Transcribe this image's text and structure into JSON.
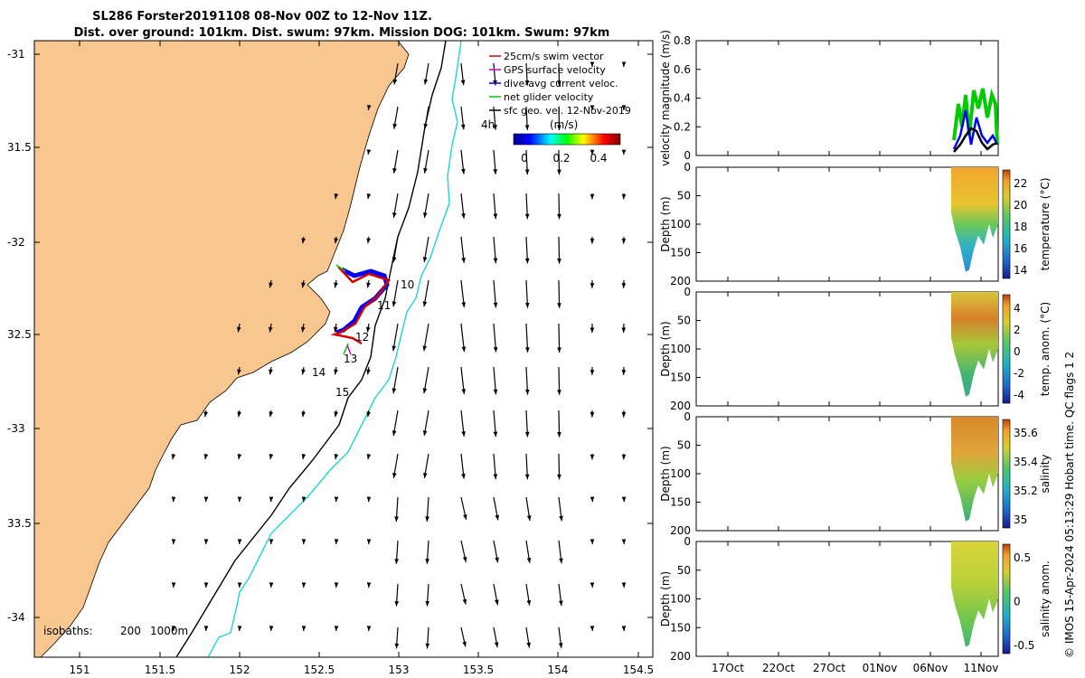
{
  "header": {
    "title_line1": "SL286 Forster20191108 08-Nov 00Z to 12-Nov 11Z.",
    "title_line2": "Dist. over ground: 101km. Dist. swum: 97km. Mission DOG: 101km. Swum: 97km"
  },
  "map": {
    "lon_ticks": [
      "151",
      "151.5",
      "152",
      "152.5",
      "153",
      "153.5",
      "154",
      "154.5"
    ],
    "lat_ticks": [
      "-31",
      "31.5",
      "-32",
      "32.5",
      "-33",
      "33.5",
      "-34"
    ],
    "legend": [
      {
        "label": "25cm/s swim vector",
        "color": "#d40000"
      },
      {
        "label": "GPS surface velocity",
        "color": "#cc00cc"
      },
      {
        "label": "dive-avg current veloc.",
        "color": "#0000ff"
      },
      {
        "label": "net glider velocity",
        "color": "#00cc00"
      },
      {
        "label": "sfc geo. vel. 12-Nov-2019",
        "color": "#000000"
      }
    ],
    "colorbar_label": "(m/s)",
    "colorbar_ticks": [
      "0",
      "0.2",
      "0.4"
    ],
    "scale_label": "4h",
    "isobath_label": "isobaths:",
    "isobath_values": [
      "200",
      "1000m"
    ],
    "day_labels": [
      "10",
      "11",
      "12",
      "13",
      "14",
      "15"
    ],
    "land_color": "#f9c690",
    "isobath_200_color": "#000000",
    "isobath_1000_color": "#22d3d3"
  },
  "chart_data": [
    {
      "type": "line",
      "ylabel": "velocity magnitude (m/s)",
      "ylim": [
        0,
        0.8
      ],
      "yticks": [
        "0",
        "0.2",
        "0.4",
        "0.6",
        "0.8"
      ]
    },
    {
      "type": "heatmap",
      "ylabel": "Depth (m)",
      "ylim": [
        200,
        0
      ],
      "yticks": [
        "0",
        "50",
        "100",
        "150",
        "200"
      ],
      "colorbar_label": "temperature (°C)",
      "colorbar_ticks": [
        "22",
        "20",
        "18",
        "16",
        "14"
      ]
    },
    {
      "type": "heatmap",
      "ylabel": "Depth (m)",
      "ylim": [
        200,
        0
      ],
      "yticks": [
        "0",
        "50",
        "100",
        "150",
        "200"
      ],
      "colorbar_label": "temp. anom. (°C)",
      "colorbar_ticks": [
        "4",
        "2",
        "0",
        "-2",
        "-4"
      ]
    },
    {
      "type": "heatmap",
      "ylabel": "Depth (m)",
      "ylim": [
        200,
        0
      ],
      "yticks": [
        "0",
        "50",
        "100",
        "150",
        "200"
      ],
      "colorbar_label": "salinity",
      "colorbar_ticks": [
        "35.6",
        "35.4",
        "35.2",
        "35"
      ]
    },
    {
      "type": "heatmap",
      "ylabel": "Depth (m)",
      "ylim": [
        200,
        0
      ],
      "yticks": [
        "0",
        "50",
        "100",
        "150",
        "200"
      ],
      "colorbar_label": "salinity anom.",
      "colorbar_ticks": [
        "0.5",
        "0",
        "-0.5"
      ],
      "x_ticks": [
        "17Oct",
        "22Oct",
        "27Oct",
        "01Nov",
        "06Nov",
        "11Nov"
      ]
    }
  ],
  "footer": {
    "side_text": "© IMOS 15-Apr-2024 05:13:29 Hobart time. QC flags 1  2"
  }
}
